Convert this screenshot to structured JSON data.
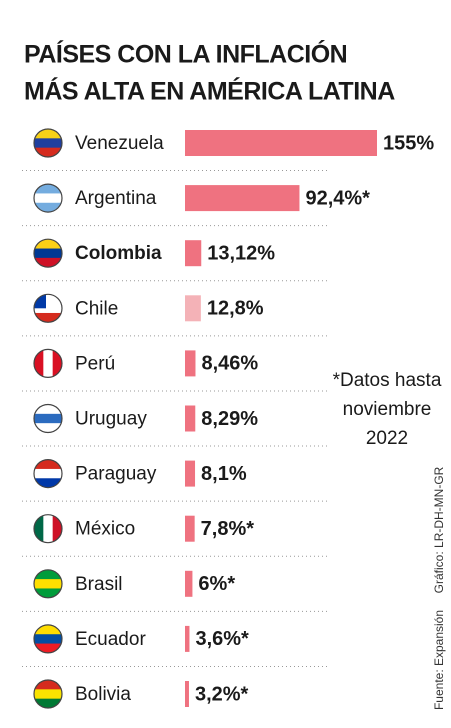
{
  "chart_data": {
    "type": "bar",
    "title": [
      "PAÍSES CON LA INFLACIÓN",
      "MÁS ALTA EN AMÉRICA LATINA"
    ],
    "categories": [
      "Venezuela",
      "Argentina",
      "Colombia",
      "Chile",
      "Perú",
      "Uruguay",
      "Paraguay",
      "México",
      "Brasil",
      "Ecuador",
      "Bolivia"
    ],
    "values": [
      155,
      92.4,
      13.12,
      12.8,
      8.46,
      8.29,
      8.1,
      7.8,
      6,
      3.6,
      3.2
    ],
    "value_labels": [
      "155%",
      "92,4%*",
      "13,12%",
      "12,8%",
      "8,46%",
      "8,29%",
      "8,1%",
      "7,8%*",
      "6%*",
      "3,6%*",
      "3,2%*"
    ],
    "colors": [
      "#ef7280",
      "#ef7280",
      "#ef7280",
      "#f4b2b7",
      "#ef7280",
      "#ef7280",
      "#ef7280",
      "#ef7280",
      "#ef7280",
      "#ef7280",
      "#ef7280"
    ],
    "highlight": "Colombia",
    "note": [
      "*Datos hasta",
      "noviembre",
      "2022"
    ],
    "credits": [
      "Gráfico: LR-DH-MN-GR",
      "Fuente: Expansión"
    ]
  }
}
